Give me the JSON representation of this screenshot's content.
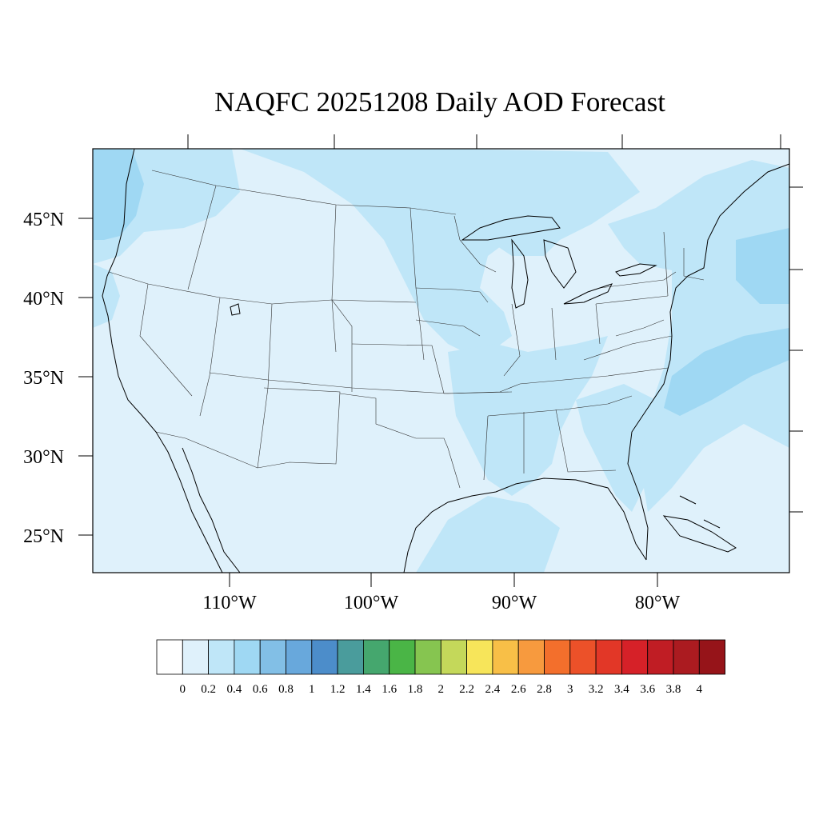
{
  "title": "NAQFC 20251208 Daily AOD Forecast",
  "map": {
    "region": "Continental United States",
    "projection": "Lambert conformal",
    "background_color": "#dff1fb",
    "lat_labels": [
      "45°N",
      "40°N",
      "35°N",
      "30°N",
      "25°N"
    ],
    "lon_labels": [
      "110°W",
      "100°W",
      "90°W",
      "80°W"
    ],
    "lat_values": [
      45,
      40,
      35,
      30,
      25
    ],
    "lon_values": [
      -110,
      -100,
      -90,
      -80
    ]
  },
  "colorbar": {
    "labels": [
      "0",
      "0.2",
      "0.4",
      "0.6",
      "0.8",
      "1",
      "1.2",
      "1.4",
      "1.6",
      "1.8",
      "2",
      "2.2",
      "2.4",
      "2.6",
      "2.8",
      "3",
      "3.2",
      "3.4",
      "3.6",
      "3.8",
      "4"
    ],
    "colors": [
      "#ffffff",
      "#dff1fb",
      "#bfe6f8",
      "#9fd8f3",
      "#82bfe6",
      "#68a8dc",
      "#4c8dca",
      "#4a9c9c",
      "#45a76e",
      "#4ab546",
      "#86c550",
      "#c4d85a",
      "#f7e55a",
      "#f8bf47",
      "#f79a3e",
      "#f36f2c",
      "#ec5129",
      "#e23727",
      "#d62128",
      "#c01d24",
      "#ab1b20",
      "#961419"
    ]
  }
}
